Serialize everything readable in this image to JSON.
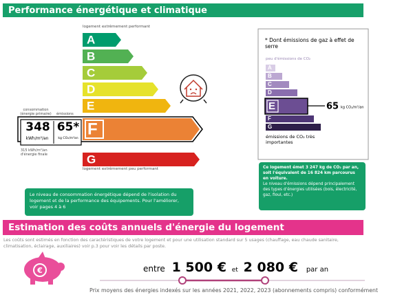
{
  "header": {
    "title": "Performance énergétique et climatique"
  },
  "energy_label": {
    "top_note": "logement extrêmement performant",
    "bottom_note": "logement extrêmement peu performant",
    "classes": [
      "A",
      "B",
      "C",
      "D",
      "E",
      "F",
      "G"
    ],
    "consumption_label": "consommation (énergie primaire)",
    "emissions_label": "émissions",
    "consumption_value": "348",
    "consumption_unit": "kWh/m²/an",
    "emissions_value": "65*",
    "emissions_unit": "kg CO₂/m²an",
    "final_energy": "315 kWh/m²/an d'énergie finale"
  },
  "energy_note": "Le niveau de consommation énergétique dépend de l'isolation du logement et de la performance des équipements. Pour l'améliorer, voir pages 4 à 6",
  "ghg_label": {
    "title": "* Dont émissions de gaz à effet de serre",
    "top_note": "peu d'émissions de CO₂",
    "bottom_note": "émissions de CO₂ très importantes",
    "classes": [
      "A",
      "B",
      "C",
      "D",
      "E",
      "F",
      "G"
    ],
    "value": "65",
    "unit": "kg CO₂/m²/an"
  },
  "ghg_note": {
    "bold": "Ce logement émet 3 247 kg de CO₂ par an, soit l'équivalent de 16 824 km parcourus en voiture.",
    "text": "Le niveau d'émissions dépend principalement des types d'énergies utilisées (bois, électricité, gaz, fioul, etc.)"
  },
  "costs": {
    "title": "Estimation des coûts annuels d'énergie du logement",
    "description": "Les coûts sont estimés en fonction des caractéristiques de votre logement et pour une utilisation standard sur 5 usages (chauffage, eau chaude sanitaire, climatisation, éclairage, auxiliaires) voir p.3 pour voir les détails par poste.",
    "from_word": "entre",
    "low": "1 500 €",
    "and_word": "et",
    "high": "2 080 €",
    "per_year": "par an",
    "footnote": "Prix moyens des énergies indexés sur les années 2021, 2022, 2023 (abonnements compris) conformément"
  }
}
